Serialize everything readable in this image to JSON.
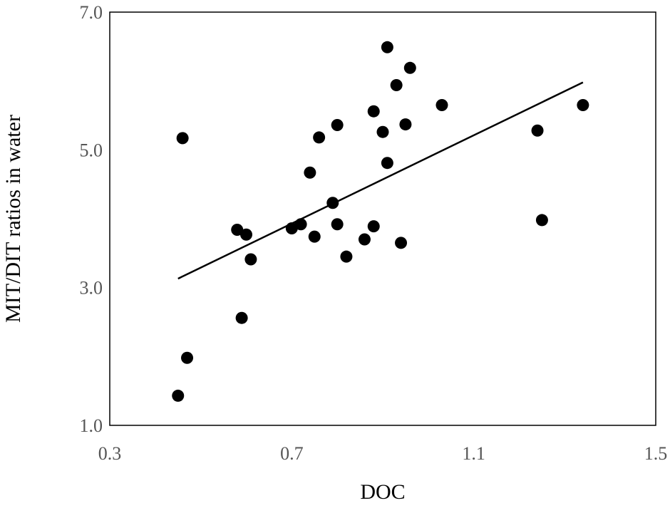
{
  "chart_data": {
    "type": "scatter",
    "title": "",
    "xlabel": "DOC",
    "ylabel": "MIT/DIT ratios in water",
    "xlim": [
      0.3,
      1.5
    ],
    "ylim": [
      1.0,
      7.0
    ],
    "x_ticks": [
      0.3,
      0.7,
      1.1,
      1.5
    ],
    "x_tick_labels": [
      "0.3",
      "0.7",
      "1.1",
      "1.5"
    ],
    "y_ticks": [
      1.0,
      3.0,
      5.0,
      7.0
    ],
    "y_tick_labels": [
      "1.0",
      "3.0",
      "5.0",
      "7.0"
    ],
    "grid": false,
    "legend": "none",
    "colors": {
      "marker": "#000000",
      "trendline": "#000000",
      "axes": "#000000"
    },
    "points": [
      {
        "x": 0.45,
        "y": 1.43
      },
      {
        "x": 0.46,
        "y": 5.17
      },
      {
        "x": 0.47,
        "y": 1.98
      },
      {
        "x": 0.58,
        "y": 3.84
      },
      {
        "x": 0.59,
        "y": 2.56
      },
      {
        "x": 0.6,
        "y": 3.77
      },
      {
        "x": 0.61,
        "y": 3.41
      },
      {
        "x": 0.7,
        "y": 3.86
      },
      {
        "x": 0.72,
        "y": 3.92
      },
      {
        "x": 0.74,
        "y": 4.67
      },
      {
        "x": 0.75,
        "y": 3.74
      },
      {
        "x": 0.76,
        "y": 5.18
      },
      {
        "x": 0.79,
        "y": 4.23
      },
      {
        "x": 0.8,
        "y": 5.36
      },
      {
        "x": 0.8,
        "y": 3.92
      },
      {
        "x": 0.82,
        "y": 3.45
      },
      {
        "x": 0.86,
        "y": 3.7
      },
      {
        "x": 0.88,
        "y": 3.89
      },
      {
        "x": 0.88,
        "y": 5.56
      },
      {
        "x": 0.9,
        "y": 5.26
      },
      {
        "x": 0.91,
        "y": 4.81
      },
      {
        "x": 0.91,
        "y": 6.49
      },
      {
        "x": 0.93,
        "y": 5.94
      },
      {
        "x": 0.94,
        "y": 3.65
      },
      {
        "x": 0.95,
        "y": 5.37
      },
      {
        "x": 0.96,
        "y": 6.19
      },
      {
        "x": 1.03,
        "y": 5.65
      },
      {
        "x": 1.24,
        "y": 5.28
      },
      {
        "x": 1.25,
        "y": 3.98
      },
      {
        "x": 1.34,
        "y": 5.65
      }
    ],
    "trendline": [
      {
        "x": 0.45,
        "y": 3.13
      },
      {
        "x": 1.34,
        "y": 5.98
      }
    ]
  }
}
